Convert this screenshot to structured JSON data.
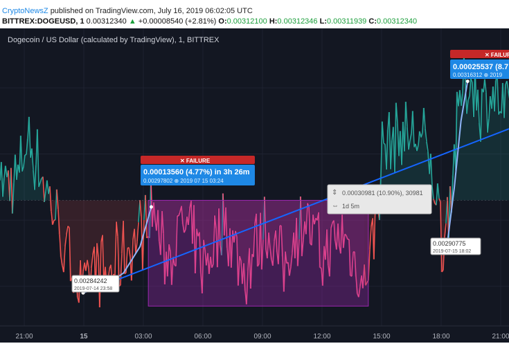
{
  "header": {
    "source": "CryptoNewsZ",
    "published": "published on TradingView.com, July 16, 2019 06:02:05 UTC",
    "symbol": "BITTREX:DOGEUSD, 1",
    "last": "0.00312340",
    "change": "+0.00008540 (+2.81%)",
    "o_label": "O:",
    "o_value": "0.00312100",
    "h_label": "H:",
    "h_value": "0.00312346",
    "l_label": "L:",
    "l_value": "0.00311939",
    "c_label": "C:",
    "c_value": "0.00312340"
  },
  "chart_data": {
    "type": "line",
    "title": "Dogecoin / US Dollar (calculated by TradingView), 1, BITTREX",
    "x_tick_labels": [
      "21:00",
      "15",
      "03:00",
      "06:00",
      "09:00",
      "12:00",
      "15:00",
      "18:00",
      "21:00"
    ],
    "y_range": [
      0.00279,
      0.00324
    ],
    "series": [
      {
        "x": [
          "2019-07-14 20:40",
          "2019-07-14 21:00",
          "2019-07-14 21:30",
          "2019-07-14 22:00",
          "2019-07-14 22:30",
          "2019-07-14 23:00",
          "2019-07-14 23:30",
          "2019-07-14 23:58",
          "2019-07-15 00:30",
          "2019-07-15 01:00",
          "2019-07-15 01:30",
          "2019-07-15 02:00",
          "2019-07-15 02:30",
          "2019-07-15 03:00",
          "2019-07-15 03:24",
          "2019-07-15 04:00",
          "2019-07-15 05:00",
          "2019-07-15 06:00",
          "2019-07-15 07:00",
          "2019-07-15 08:00",
          "2019-07-15 09:00",
          "2019-07-15 10:00",
          "2019-07-15 11:00",
          "2019-07-15 12:00",
          "2019-07-15 13:00",
          "2019-07-15 14:00",
          "2019-07-15 14:30",
          "2019-07-15 15:00",
          "2019-07-15 16:00",
          "2019-07-15 17:00",
          "2019-07-15 17:40",
          "2019-07-15 18:02",
          "2019-07-15 18:30",
          "2019-07-15 19:00",
          "2019-07-15 19:30",
          "2019-07-15 20:00",
          "2019-07-15 20:30",
          "2019-07-15 21:00",
          "2019-07-15 21:30"
        ],
        "values": [
          0.00301,
          0.00307,
          0.00305,
          0.003,
          0.00296,
          0.0029,
          0.00287,
          0.00284,
          0.00289,
          0.00286,
          0.00288,
          0.0029,
          0.00292,
          0.00294,
          0.00297,
          0.00289,
          0.00294,
          0.00288,
          0.00295,
          0.00287,
          0.00294,
          0.00288,
          0.00296,
          0.00289,
          0.00293,
          0.00285,
          0.00292,
          0.00306,
          0.00308,
          0.00307,
          0.003,
          0.00291,
          0.00302,
          0.00315,
          0.00316,
          0.00312,
          0.00314,
          0.00312,
          0.0031
        ]
      }
    ],
    "trend_line": {
      "x": [
        "2019-07-14 23:58",
        "2019-07-15 21:35"
      ],
      "values": [
        0.00284,
        0.00309
      ]
    },
    "blue_path_1": {
      "x": [
        "2019-07-14 23:58",
        "2019-07-15 01:00",
        "2019-07-15 02:00",
        "2019-07-15 02:50",
        "2019-07-15 03:24"
      ],
      "values": [
        0.00284,
        0.00285,
        0.00287,
        0.00291,
        0.00297
      ]
    },
    "blue_path_2": {
      "x": [
        "2019-07-15 18:02",
        "2019-07-15 18:20",
        "2019-07-15 18:40",
        "2019-07-15 19:00",
        "2019-07-15 19:20"
      ],
      "values": [
        0.0029,
        0.00292,
        0.003,
        0.0031,
        0.00316
      ]
    },
    "range_box": {
      "x": [
        "2019-07-15 03:15",
        "2019-07-15 14:20"
      ],
      "values": [
        0.00282,
        0.00298
      ]
    },
    "annotations": {
      "failure_label": "FAILURE",
      "box1_line1": "0.00013560 (4.77%) in 3h 26m",
      "box1_line2": "0.00297802 ⊕ 2019 07 15 03:24",
      "box2_line1": "0.00025537 (8.7",
      "box2_line2": "0.00316312 ⊕ 2019",
      "range_line1": "0.00030981 (10.90%), 30981",
      "range_line2": "1d 5m",
      "label_low_price": "0.00284242",
      "label_low_time": "2019-07-14 23:58",
      "label_low2_price": "0.00290775",
      "label_low2_time": "2019-07-15 18:02"
    }
  },
  "colors": {
    "background": "#131722",
    "up": "#26a69a",
    "down": "#ef5350",
    "range_fill": "#9c27b0",
    "blue": "#2962ff",
    "label_blue": "#1e88e5",
    "failure_red": "#c62828"
  }
}
